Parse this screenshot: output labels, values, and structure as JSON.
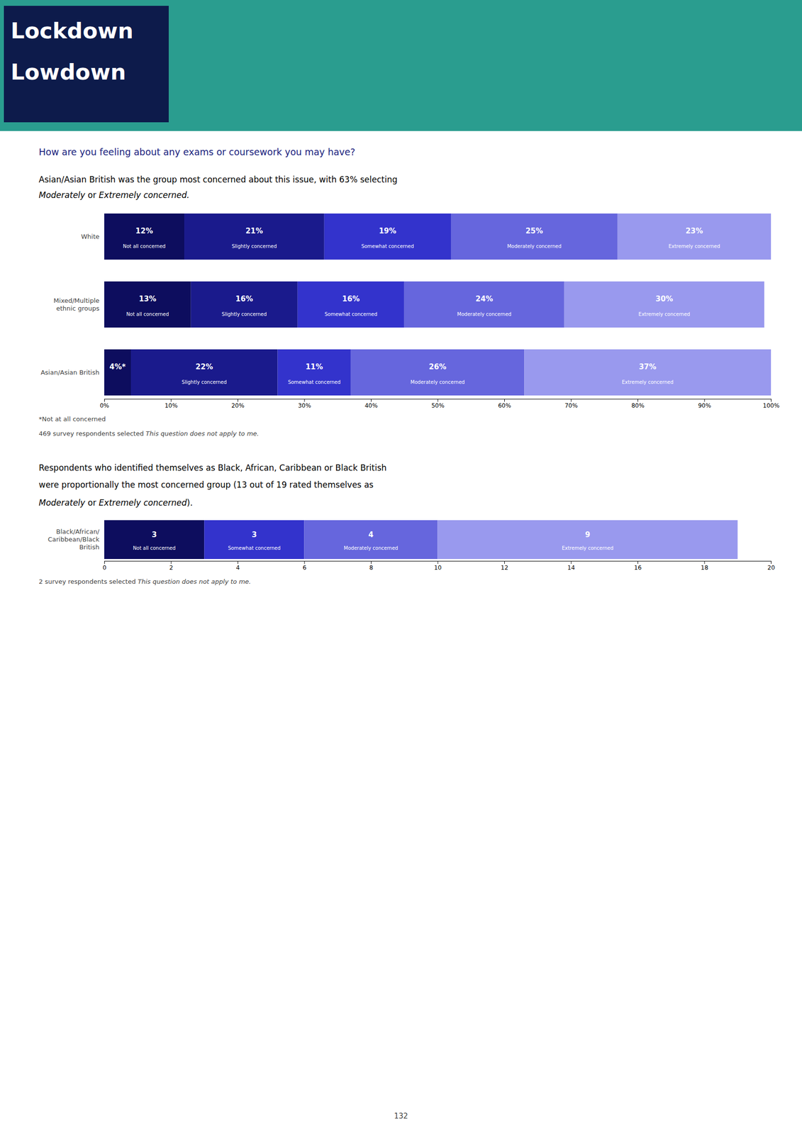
{
  "page": {
    "header": [
      "Lockdown",
      "Lowdown"
    ],
    "page_number": "132"
  },
  "chart_data": [
    {
      "type": "bar",
      "orientation": "horizontal",
      "stacked": true,
      "data_labels": true,
      "title": "How are you feeling about any exams or coursework you may have?",
      "subtitle": [
        [
          {
            "text": "Asian/Asian British was the group most concerned about this issue, with 63% selecting"
          }
        ],
        [
          {
            "text": "Moderately",
            "italic": true
          },
          {
            "text": " or "
          },
          {
            "text": "Extremely concerned.",
            "italic": true
          }
        ]
      ],
      "categories": [
        "White",
        "Mixed/Multiple\nethnic groups",
        "Asian/Asian British"
      ],
      "series": [
        {
          "color": "#0d0d5e",
          "values": [
            12,
            13,
            4
          ],
          "value_labels": [
            "12%",
            "13%",
            "4%*"
          ],
          "segment_labels": [
            "Not all concerned",
            "Not all concerned",
            null
          ]
        },
        {
          "color": "#1a1a8c",
          "values": [
            21,
            16,
            22
          ],
          "value_labels": [
            "21%",
            "16%",
            "22%"
          ],
          "segment_labels": [
            "Slightly concerned",
            "Slightly concerned",
            "Slightly concerned"
          ]
        },
        {
          "color": "#3333cc",
          "values": [
            19,
            16,
            11
          ],
          "value_labels": [
            "19%",
            "16%",
            "11%"
          ],
          "segment_labels": [
            "Somewhat concerned",
            "Somewhat concerned",
            "Somewhat concerned"
          ]
        },
        {
          "color": "#6666dd",
          "values": [
            25,
            24,
            26
          ],
          "value_labels": [
            "25%",
            "24%",
            "26%"
          ],
          "segment_labels": [
            "Moderately concerned",
            "Moderately concerned",
            "Moderately concerned"
          ]
        },
        {
          "color": "#9999ee",
          "values": [
            23,
            30,
            37
          ],
          "value_labels": [
            "23%",
            "30%",
            "37%"
          ],
          "segment_labels": [
            "Extremely concerned",
            "Extremely concerned",
            "Extremely concerned"
          ]
        }
      ],
      "xlim": [
        0,
        100
      ],
      "xticks": [
        {
          "value": 0,
          "label": "0%"
        },
        {
          "value": 10,
          "label": "10%"
        },
        {
          "value": 20,
          "label": "20%"
        },
        {
          "value": 30,
          "label": "30%"
        },
        {
          "value": 40,
          "label": "40%"
        },
        {
          "value": 50,
          "label": "50%"
        },
        {
          "value": 60,
          "label": "60%"
        },
        {
          "value": 70,
          "label": "70%"
        },
        {
          "value": 80,
          "label": "80%"
        },
        {
          "value": 90,
          "label": "90%"
        },
        {
          "value": 100,
          "label": "100%"
        }
      ],
      "annotations": [
        [
          {
            "text": "*Not at all concerned"
          }
        ],
        [
          {
            "text": "469 survey respondents selected "
          },
          {
            "text": "This question does not apply to me.",
            "italic": true
          }
        ]
      ]
    },
    {
      "type": "bar",
      "orientation": "horizontal",
      "stacked": true,
      "data_labels": true,
      "subtitle": [
        [
          {
            "text": "Respondents who identified themselves as Black, African, Caribbean or Black British"
          }
        ],
        [
          {
            "text": "were proportionally the most concerned group (13 out of 19 rated themselves as"
          }
        ],
        [
          {
            "text": "Moderately",
            "italic": true
          },
          {
            "text": " or "
          },
          {
            "text": "Extremely concerned",
            "italic": true
          },
          {
            "text": ")."
          }
        ]
      ],
      "categories": [
        "Black/African/\nCaribbean/Black\nBritish"
      ],
      "series": [
        {
          "color": "#0d0d5e",
          "values": [
            3
          ],
          "segment_labels": [
            "Not all concerned"
          ]
        },
        {
          "color": "#3333cc",
          "values": [
            3
          ],
          "segment_labels": [
            "Somewhat concerned"
          ]
        },
        {
          "color": "#6666dd",
          "values": [
            4
          ],
          "segment_labels": [
            "Moderately concerned"
          ]
        },
        {
          "color": "#9999ee",
          "values": [
            9
          ],
          "segment_labels": [
            "Extremely concerned"
          ]
        }
      ],
      "xlim": [
        0,
        20
      ],
      "xticks": [
        0,
        2,
        4,
        6,
        8,
        10,
        12,
        14,
        16,
        18,
        20
      ],
      "annotations": [
        [
          {
            "text": "2 survey respondents selected "
          },
          {
            "text": "This question does not apply to me.",
            "italic": true
          }
        ]
      ]
    }
  ]
}
